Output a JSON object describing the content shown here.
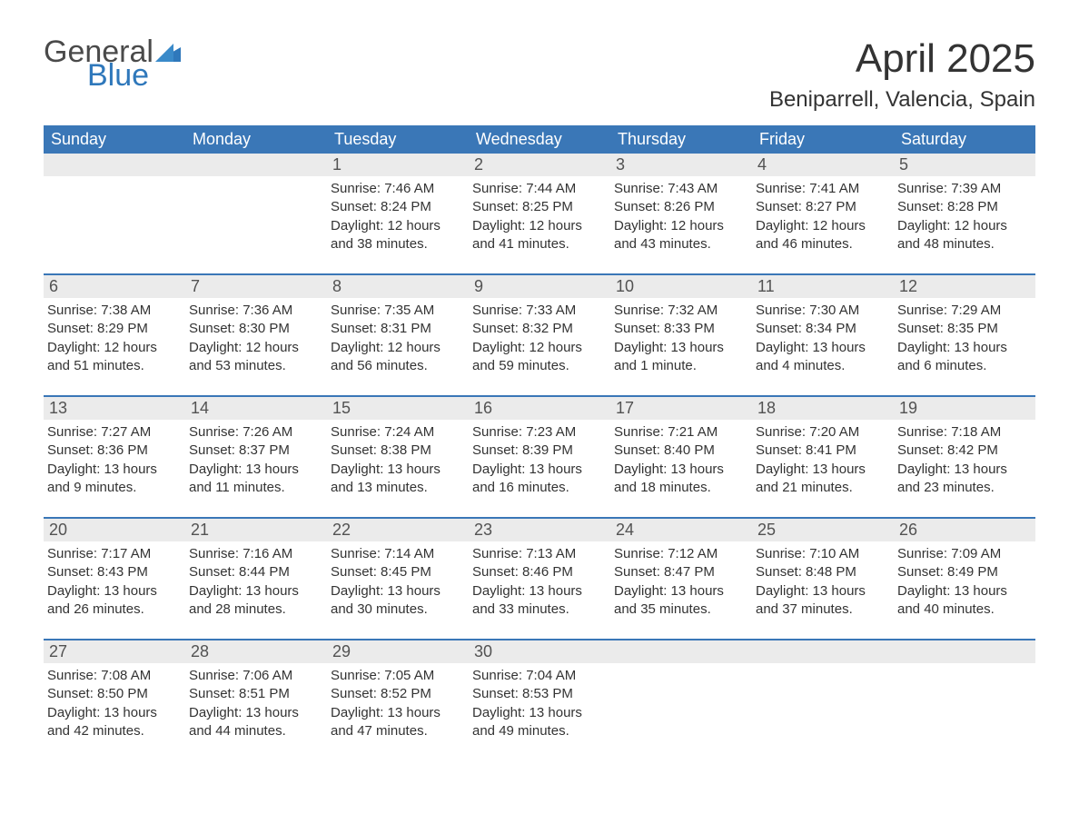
{
  "logo": {
    "text1": "General",
    "text2": "Blue",
    "flag_color": "#2f78bb"
  },
  "title": "April 2025",
  "location": "Beniparrell, Valencia, Spain",
  "colors": {
    "header_bg": "#3a77b7",
    "header_text": "#ffffff",
    "daynum_bg": "#ebebeb",
    "daynum_text": "#525252",
    "body_text": "#333333",
    "rule": "#3a77b7"
  },
  "weekdays": [
    "Sunday",
    "Monday",
    "Tuesday",
    "Wednesday",
    "Thursday",
    "Friday",
    "Saturday"
  ],
  "weeks": [
    [
      {
        "n": "",
        "sunrise": "",
        "sunset": "",
        "daylight": ""
      },
      {
        "n": "",
        "sunrise": "",
        "sunset": "",
        "daylight": ""
      },
      {
        "n": "1",
        "sunrise": "Sunrise: 7:46 AM",
        "sunset": "Sunset: 8:24 PM",
        "daylight": "Daylight: 12 hours and 38 minutes."
      },
      {
        "n": "2",
        "sunrise": "Sunrise: 7:44 AM",
        "sunset": "Sunset: 8:25 PM",
        "daylight": "Daylight: 12 hours and 41 minutes."
      },
      {
        "n": "3",
        "sunrise": "Sunrise: 7:43 AM",
        "sunset": "Sunset: 8:26 PM",
        "daylight": "Daylight: 12 hours and 43 minutes."
      },
      {
        "n": "4",
        "sunrise": "Sunrise: 7:41 AM",
        "sunset": "Sunset: 8:27 PM",
        "daylight": "Daylight: 12 hours and 46 minutes."
      },
      {
        "n": "5",
        "sunrise": "Sunrise: 7:39 AM",
        "sunset": "Sunset: 8:28 PM",
        "daylight": "Daylight: 12 hours and 48 minutes."
      }
    ],
    [
      {
        "n": "6",
        "sunrise": "Sunrise: 7:38 AM",
        "sunset": "Sunset: 8:29 PM",
        "daylight": "Daylight: 12 hours and 51 minutes."
      },
      {
        "n": "7",
        "sunrise": "Sunrise: 7:36 AM",
        "sunset": "Sunset: 8:30 PM",
        "daylight": "Daylight: 12 hours and 53 minutes."
      },
      {
        "n": "8",
        "sunrise": "Sunrise: 7:35 AM",
        "sunset": "Sunset: 8:31 PM",
        "daylight": "Daylight: 12 hours and 56 minutes."
      },
      {
        "n": "9",
        "sunrise": "Sunrise: 7:33 AM",
        "sunset": "Sunset: 8:32 PM",
        "daylight": "Daylight: 12 hours and 59 minutes."
      },
      {
        "n": "10",
        "sunrise": "Sunrise: 7:32 AM",
        "sunset": "Sunset: 8:33 PM",
        "daylight": "Daylight: 13 hours and 1 minute."
      },
      {
        "n": "11",
        "sunrise": "Sunrise: 7:30 AM",
        "sunset": "Sunset: 8:34 PM",
        "daylight": "Daylight: 13 hours and 4 minutes."
      },
      {
        "n": "12",
        "sunrise": "Sunrise: 7:29 AM",
        "sunset": "Sunset: 8:35 PM",
        "daylight": "Daylight: 13 hours and 6 minutes."
      }
    ],
    [
      {
        "n": "13",
        "sunrise": "Sunrise: 7:27 AM",
        "sunset": "Sunset: 8:36 PM",
        "daylight": "Daylight: 13 hours and 9 minutes."
      },
      {
        "n": "14",
        "sunrise": "Sunrise: 7:26 AM",
        "sunset": "Sunset: 8:37 PM",
        "daylight": "Daylight: 13 hours and 11 minutes."
      },
      {
        "n": "15",
        "sunrise": "Sunrise: 7:24 AM",
        "sunset": "Sunset: 8:38 PM",
        "daylight": "Daylight: 13 hours and 13 minutes."
      },
      {
        "n": "16",
        "sunrise": "Sunrise: 7:23 AM",
        "sunset": "Sunset: 8:39 PM",
        "daylight": "Daylight: 13 hours and 16 minutes."
      },
      {
        "n": "17",
        "sunrise": "Sunrise: 7:21 AM",
        "sunset": "Sunset: 8:40 PM",
        "daylight": "Daylight: 13 hours and 18 minutes."
      },
      {
        "n": "18",
        "sunrise": "Sunrise: 7:20 AM",
        "sunset": "Sunset: 8:41 PM",
        "daylight": "Daylight: 13 hours and 21 minutes."
      },
      {
        "n": "19",
        "sunrise": "Sunrise: 7:18 AM",
        "sunset": "Sunset: 8:42 PM",
        "daylight": "Daylight: 13 hours and 23 minutes."
      }
    ],
    [
      {
        "n": "20",
        "sunrise": "Sunrise: 7:17 AM",
        "sunset": "Sunset: 8:43 PM",
        "daylight": "Daylight: 13 hours and 26 minutes."
      },
      {
        "n": "21",
        "sunrise": "Sunrise: 7:16 AM",
        "sunset": "Sunset: 8:44 PM",
        "daylight": "Daylight: 13 hours and 28 minutes."
      },
      {
        "n": "22",
        "sunrise": "Sunrise: 7:14 AM",
        "sunset": "Sunset: 8:45 PM",
        "daylight": "Daylight: 13 hours and 30 minutes."
      },
      {
        "n": "23",
        "sunrise": "Sunrise: 7:13 AM",
        "sunset": "Sunset: 8:46 PM",
        "daylight": "Daylight: 13 hours and 33 minutes."
      },
      {
        "n": "24",
        "sunrise": "Sunrise: 7:12 AM",
        "sunset": "Sunset: 8:47 PM",
        "daylight": "Daylight: 13 hours and 35 minutes."
      },
      {
        "n": "25",
        "sunrise": "Sunrise: 7:10 AM",
        "sunset": "Sunset: 8:48 PM",
        "daylight": "Daylight: 13 hours and 37 minutes."
      },
      {
        "n": "26",
        "sunrise": "Sunrise: 7:09 AM",
        "sunset": "Sunset: 8:49 PM",
        "daylight": "Daylight: 13 hours and 40 minutes."
      }
    ],
    [
      {
        "n": "27",
        "sunrise": "Sunrise: 7:08 AM",
        "sunset": "Sunset: 8:50 PM",
        "daylight": "Daylight: 13 hours and 42 minutes."
      },
      {
        "n": "28",
        "sunrise": "Sunrise: 7:06 AM",
        "sunset": "Sunset: 8:51 PM",
        "daylight": "Daylight: 13 hours and 44 minutes."
      },
      {
        "n": "29",
        "sunrise": "Sunrise: 7:05 AM",
        "sunset": "Sunset: 8:52 PM",
        "daylight": "Daylight: 13 hours and 47 minutes."
      },
      {
        "n": "30",
        "sunrise": "Sunrise: 7:04 AM",
        "sunset": "Sunset: 8:53 PM",
        "daylight": "Daylight: 13 hours and 49 minutes."
      },
      {
        "n": "",
        "sunrise": "",
        "sunset": "",
        "daylight": ""
      },
      {
        "n": "",
        "sunrise": "",
        "sunset": "",
        "daylight": ""
      },
      {
        "n": "",
        "sunrise": "",
        "sunset": "",
        "daylight": ""
      }
    ]
  ]
}
